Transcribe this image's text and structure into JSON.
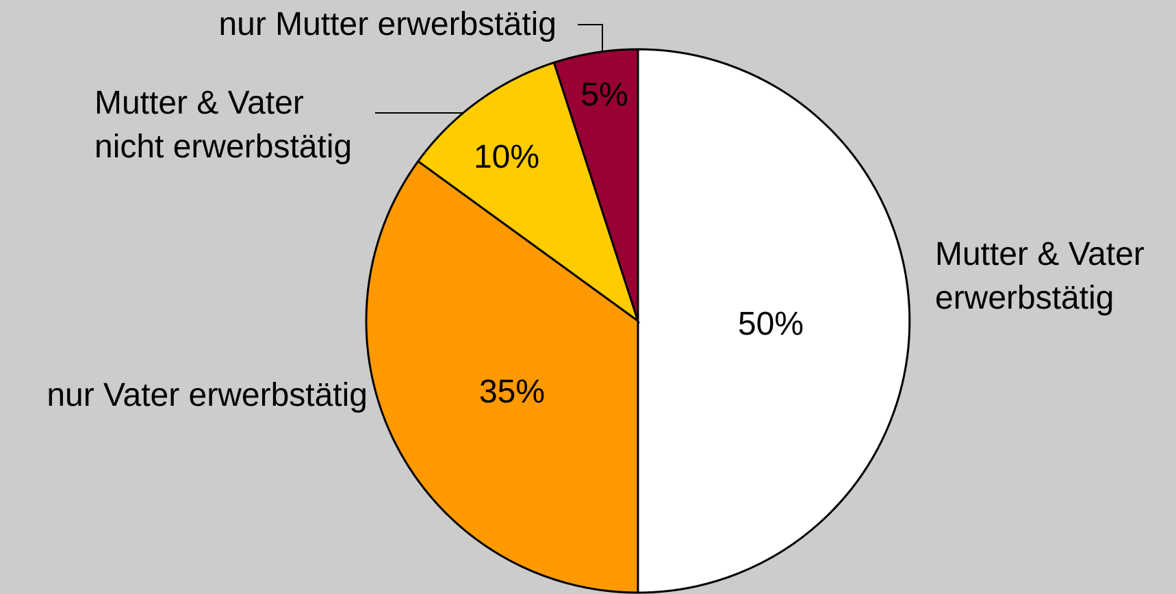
{
  "chart_data": {
    "type": "pie",
    "categories": [
      "Mutter & Vater\nerwerbstätig",
      "nur Vater erwerbstätig",
      "Mutter & Vater\nnicht erwerbstätig",
      "nur Mutter erwerbstätig"
    ],
    "values": [
      50,
      35,
      10,
      5
    ],
    "value_labels": [
      "50%",
      "35%",
      "10%",
      "5%"
    ],
    "colors": [
      "#ffffff",
      "#ff9900",
      "#ffcc00",
      "#990033"
    ],
    "start_angle": 0,
    "direction": "clockwise"
  }
}
